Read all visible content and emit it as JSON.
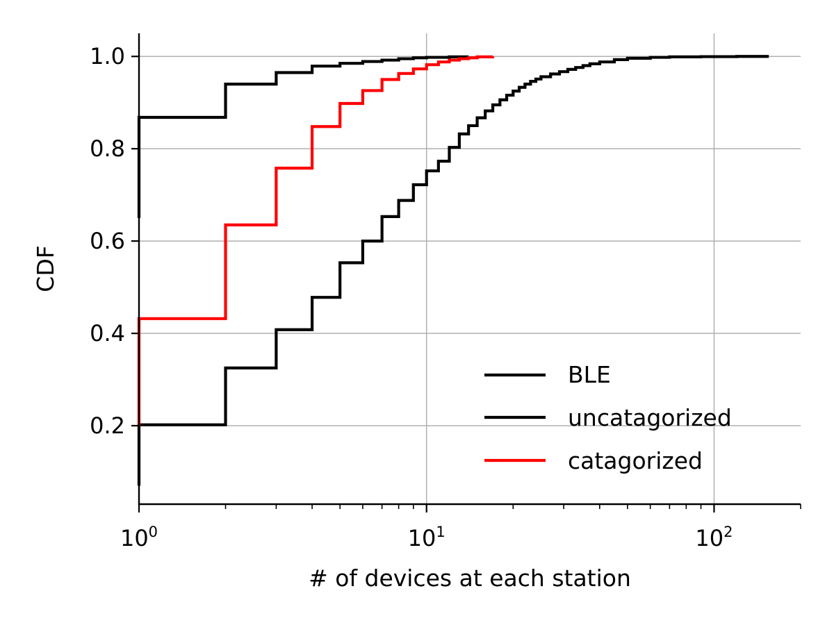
{
  "chart_data": {
    "type": "line",
    "title": "",
    "xlabel": "# of devices at each station",
    "ylabel": "CDF",
    "xscale": "log",
    "xlim": [
      1,
      200
    ],
    "ylim": [
      0.03,
      1.05
    ],
    "grid": true,
    "legend_position": "bottom-right",
    "x_ticks": [
      {
        "value": 1,
        "base": "10",
        "exp": "0"
      },
      {
        "value": 10,
        "base": "10",
        "exp": "1"
      },
      {
        "value": 100,
        "base": "10",
        "exp": "2"
      }
    ],
    "y_ticks": [
      {
        "value": 0.2,
        "label": "0.2"
      },
      {
        "value": 0.4,
        "label": "0.4"
      },
      {
        "value": 0.6,
        "label": "0.6"
      },
      {
        "value": 0.8,
        "label": "0.8"
      },
      {
        "value": 1.0,
        "label": "1.0"
      }
    ],
    "series": [
      {
        "name": "BLE",
        "color": "#000000",
        "x": [
          1,
          2,
          3,
          4,
          5,
          6,
          7,
          8,
          9,
          10,
          12,
          14
        ],
        "y": [
          0.868,
          0.94,
          0.965,
          0.979,
          0.985,
          0.989,
          0.992,
          0.995,
          0.997,
          0.998,
          0.999,
          1.0
        ],
        "start_y": 0.65
      },
      {
        "name": "uncatagorized",
        "color": "#000000",
        "x": [
          1,
          2,
          3,
          4,
          5,
          6,
          7,
          8,
          9,
          10,
          11,
          12,
          13,
          14,
          15,
          16,
          17,
          18,
          19,
          20,
          21,
          22,
          23,
          24,
          25,
          27,
          29,
          31,
          33,
          35,
          37,
          40,
          45,
          50,
          60,
          70,
          90,
          120,
          155
        ],
        "y": [
          0.202,
          0.325,
          0.408,
          0.478,
          0.553,
          0.6,
          0.653,
          0.688,
          0.722,
          0.752,
          0.773,
          0.803,
          0.832,
          0.85,
          0.867,
          0.882,
          0.895,
          0.906,
          0.916,
          0.925,
          0.933,
          0.94,
          0.946,
          0.951,
          0.956,
          0.962,
          0.967,
          0.972,
          0.976,
          0.98,
          0.984,
          0.988,
          0.993,
          0.996,
          0.998,
          0.999,
          0.9995,
          1.0,
          1.0
        ],
        "start_y": 0.07
      },
      {
        "name": "catagorized",
        "color": "#ff0000",
        "x": [
          1,
          2,
          3,
          4,
          5,
          6,
          7,
          8,
          9,
          10,
          11,
          12,
          13,
          14,
          15,
          17
        ],
        "y": [
          0.432,
          0.635,
          0.758,
          0.848,
          0.898,
          0.926,
          0.95,
          0.963,
          0.973,
          0.982,
          0.988,
          0.992,
          0.995,
          0.997,
          0.999,
          1.0
        ],
        "start_y": 0.2
      }
    ]
  }
}
